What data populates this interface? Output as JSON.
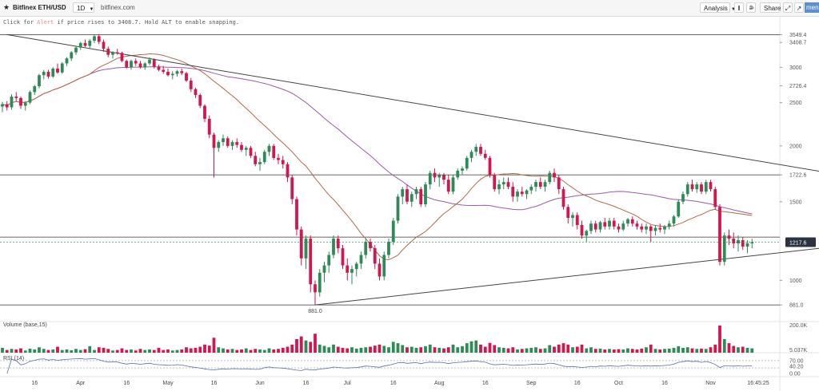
{
  "toolbar": {
    "symbol": "Bitfinex ETH/USD",
    "interval": "1D",
    "source": "bitfinex.com",
    "analysis_label": "Analysis",
    "share_label": "Share",
    "more_label": "menu"
  },
  "hint": {
    "prefix": "Click for ",
    "alert_word": "Alert",
    "suffix": " if price rises to 3408.7. Hold ALT to enable snapping."
  },
  "colors": {
    "up": "#2e8b57",
    "down": "#d0174f",
    "ma_fast": "#b0684a",
    "ma_slow": "#9b5aa6",
    "trendline": "#444444",
    "last_price_bg": "#2b3340"
  },
  "chart_data": [
    {
      "type": "candlestick",
      "price_axis_labels": [
        "3549.4",
        "3408.7",
        "3000",
        "2726.4",
        "2500",
        "2000",
        "1722.6",
        "1500",
        "1217.6",
        "1000",
        "881.0"
      ],
      "x_tick_labels": [
        "16",
        "Apr",
        "16",
        "May",
        "16",
        "Jun",
        "16",
        "Jul",
        "16",
        "Aug",
        "16",
        "Sep",
        "16",
        "Oct",
        "16",
        "Nov",
        "16:45:25"
      ],
      "last_price": "1217.6",
      "low_annotation": "881.0",
      "horizontal_levels": [
        3549.4,
        1722.6,
        1250,
        881
      ],
      "trendlines": [
        {
          "from": [
            1,
            3550
          ],
          "to": [
            217,
            1500
          ]
        },
        {
          "from": [
            68,
            881
          ],
          "to": [
            217,
            1310
          ]
        }
      ],
      "ohlc": [
        [
          2450,
          2510,
          2380,
          2480
        ],
        [
          2480,
          2520,
          2400,
          2440
        ],
        [
          2440,
          2610,
          2410,
          2580
        ],
        [
          2580,
          2640,
          2520,
          2560
        ],
        [
          2560,
          2580,
          2420,
          2460
        ],
        [
          2460,
          2520,
          2400,
          2500
        ],
        [
          2500,
          2660,
          2480,
          2640
        ],
        [
          2640,
          2740,
          2600,
          2720
        ],
        [
          2720,
          2900,
          2690,
          2880
        ],
        [
          2880,
          2960,
          2820,
          2930
        ],
        [
          2930,
          2960,
          2830,
          2860
        ],
        [
          2860,
          3000,
          2840,
          2980
        ],
        [
          2980,
          3060,
          2900,
          2920
        ],
        [
          2920,
          3080,
          2900,
          3060
        ],
        [
          3060,
          3160,
          3020,
          3140
        ],
        [
          3140,
          3260,
          3100,
          3240
        ],
        [
          3240,
          3340,
          3200,
          3320
        ],
        [
          3320,
          3420,
          3280,
          3400
        ],
        [
          3400,
          3460,
          3330,
          3350
        ],
        [
          3350,
          3470,
          3300,
          3440
        ],
        [
          3440,
          3550,
          3400,
          3520
        ],
        [
          3520,
          3560,
          3380,
          3420
        ],
        [
          3420,
          3460,
          3250,
          3300
        ],
        [
          3300,
          3340,
          3160,
          3200
        ],
        [
          3200,
          3260,
          3140,
          3240
        ],
        [
          3240,
          3300,
          3200,
          3230
        ],
        [
          3230,
          3250,
          3080,
          3100
        ],
        [
          3100,
          3120,
          2980,
          3000
        ],
        [
          3000,
          3120,
          2960,
          3100
        ],
        [
          3100,
          3140,
          3020,
          3060
        ],
        [
          3060,
          3100,
          2980,
          3000
        ],
        [
          3000,
          3080,
          2960,
          3060
        ],
        [
          3060,
          3160,
          3030,
          3120
        ],
        [
          3120,
          3140,
          2980,
          3010
        ],
        [
          3010,
          3040,
          2940,
          2960
        ],
        [
          2960,
          3020,
          2900,
          2930
        ],
        [
          2930,
          2980,
          2860,
          2880
        ],
        [
          2880,
          2940,
          2820,
          2900
        ],
        [
          2900,
          2960,
          2860,
          2940
        ],
        [
          2940,
          2980,
          2880,
          2910
        ],
        [
          2910,
          2930,
          2780,
          2800
        ],
        [
          2800,
          2840,
          2640,
          2680
        ],
        [
          2680,
          2700,
          2560,
          2600
        ],
        [
          2600,
          2620,
          2430,
          2460
        ],
        [
          2460,
          2480,
          2260,
          2300
        ],
        [
          2300,
          2340,
          2080,
          2120
        ],
        [
          2120,
          2140,
          1700,
          1980
        ],
        [
          1980,
          2060,
          1940,
          2040
        ],
        [
          2040,
          2120,
          2000,
          2080
        ],
        [
          2080,
          2100,
          1980,
          2000
        ],
        [
          2000,
          2060,
          1960,
          2040
        ],
        [
          2040,
          2080,
          1980,
          2010
        ],
        [
          2010,
          2040,
          1940,
          1960
        ],
        [
          1960,
          2000,
          1900,
          1980
        ],
        [
          1980,
          2000,
          1880,
          1900
        ],
        [
          1900,
          1940,
          1800,
          1820
        ],
        [
          1820,
          1880,
          1760,
          1840
        ],
        [
          1840,
          1960,
          1820,
          1940
        ],
        [
          1940,
          2020,
          1900,
          2000
        ],
        [
          2000,
          2020,
          1860,
          1880
        ],
        [
          1880,
          1920,
          1820,
          1860
        ],
        [
          1860,
          1900,
          1780,
          1820
        ],
        [
          1820,
          1840,
          1660,
          1700
        ],
        [
          1700,
          1720,
          1480,
          1520
        ],
        [
          1520,
          1540,
          1260,
          1300
        ],
        [
          1300,
          1320,
          1080,
          1120
        ],
        [
          1120,
          1260,
          1060,
          1240
        ],
        [
          1240,
          1260,
          940,
          980
        ],
        [
          980,
          1000,
          881,
          940
        ],
        [
          940,
          1060,
          920,
          1040
        ],
        [
          1040,
          1100,
          990,
          1080
        ],
        [
          1080,
          1160,
          1040,
          1140
        ],
        [
          1140,
          1260,
          1120,
          1240
        ],
        [
          1240,
          1260,
          1150,
          1180
        ],
        [
          1180,
          1200,
          1060,
          1080
        ],
        [
          1080,
          1120,
          1000,
          1040
        ],
        [
          1040,
          1080,
          980,
          1060
        ],
        [
          1060,
          1100,
          1020,
          1090
        ],
        [
          1090,
          1160,
          1060,
          1140
        ],
        [
          1140,
          1240,
          1120,
          1220
        ],
        [
          1220,
          1240,
          1160,
          1180
        ],
        [
          1180,
          1200,
          1060,
          1090
        ],
        [
          1090,
          1120,
          1000,
          1020
        ],
        [
          1020,
          1160,
          1000,
          1140
        ],
        [
          1140,
          1240,
          1120,
          1220
        ],
        [
          1220,
          1380,
          1200,
          1360
        ],
        [
          1360,
          1560,
          1340,
          1540
        ],
        [
          1540,
          1620,
          1480,
          1600
        ],
        [
          1600,
          1640,
          1480,
          1500
        ],
        [
          1500,
          1580,
          1460,
          1560
        ],
        [
          1560,
          1620,
          1520,
          1600
        ],
        [
          1600,
          1620,
          1460,
          1480
        ],
        [
          1480,
          1660,
          1460,
          1640
        ],
        [
          1640,
          1760,
          1600,
          1740
        ],
        [
          1740,
          1780,
          1660,
          1700
        ],
        [
          1700,
          1740,
          1620,
          1720
        ],
        [
          1720,
          1740,
          1640,
          1680
        ],
        [
          1680,
          1720,
          1560,
          1580
        ],
        [
          1580,
          1720,
          1560,
          1700
        ],
        [
          1700,
          1780,
          1680,
          1760
        ],
        [
          1760,
          1800,
          1720,
          1780
        ],
        [
          1780,
          1900,
          1760,
          1880
        ],
        [
          1880,
          1960,
          1840,
          1940
        ],
        [
          1940,
          2020,
          1900,
          1990
        ],
        [
          1990,
          2020,
          1900,
          1920
        ],
        [
          1920,
          1960,
          1860,
          1880
        ],
        [
          1880,
          1900,
          1700,
          1720
        ],
        [
          1720,
          1740,
          1580,
          1600
        ],
        [
          1600,
          1680,
          1560,
          1640
        ],
        [
          1640,
          1700,
          1600,
          1660
        ],
        [
          1660,
          1700,
          1600,
          1620
        ],
        [
          1620,
          1660,
          1500,
          1540
        ],
        [
          1540,
          1600,
          1500,
          1580
        ],
        [
          1580,
          1620,
          1540,
          1560
        ],
        [
          1560,
          1600,
          1520,
          1590
        ],
        [
          1590,
          1640,
          1560,
          1620
        ],
        [
          1620,
          1680,
          1580,
          1660
        ],
        [
          1660,
          1700,
          1600,
          1620
        ],
        [
          1620,
          1680,
          1580,
          1660
        ],
        [
          1660,
          1760,
          1640,
          1740
        ],
        [
          1740,
          1780,
          1660,
          1700
        ],
        [
          1700,
          1720,
          1560,
          1600
        ],
        [
          1600,
          1620,
          1440,
          1460
        ],
        [
          1460,
          1480,
          1340,
          1380
        ],
        [
          1380,
          1420,
          1320,
          1400
        ],
        [
          1400,
          1420,
          1300,
          1330
        ],
        [
          1330,
          1360,
          1240,
          1260
        ],
        [
          1260,
          1300,
          1220,
          1290
        ],
        [
          1290,
          1360,
          1270,
          1340
        ],
        [
          1340,
          1360,
          1280,
          1300
        ],
        [
          1300,
          1360,
          1280,
          1350
        ],
        [
          1350,
          1380,
          1300,
          1320
        ],
        [
          1320,
          1380,
          1300,
          1360
        ],
        [
          1360,
          1380,
          1300,
          1320
        ],
        [
          1320,
          1340,
          1280,
          1300
        ],
        [
          1300,
          1360,
          1290,
          1340
        ],
        [
          1340,
          1380,
          1320,
          1370
        ],
        [
          1370,
          1390,
          1320,
          1340
        ],
        [
          1340,
          1360,
          1300,
          1320
        ],
        [
          1320,
          1340,
          1280,
          1300
        ],
        [
          1300,
          1340,
          1270,
          1320
        ],
        [
          1320,
          1330,
          1220,
          1290
        ],
        [
          1290,
          1330,
          1260,
          1310
        ],
        [
          1310,
          1340,
          1280,
          1300
        ],
        [
          1300,
          1330,
          1270,
          1320
        ],
        [
          1320,
          1360,
          1300,
          1340
        ],
        [
          1340,
          1400,
          1320,
          1390
        ],
        [
          1390,
          1520,
          1380,
          1500
        ],
        [
          1500,
          1580,
          1480,
          1560
        ],
        [
          1560,
          1660,
          1540,
          1640
        ],
        [
          1640,
          1680,
          1580,
          1600
        ],
        [
          1600,
          1660,
          1570,
          1640
        ],
        [
          1640,
          1660,
          1560,
          1580
        ],
        [
          1580,
          1680,
          1560,
          1660
        ],
        [
          1660,
          1680,
          1580,
          1600
        ],
        [
          1600,
          1620,
          1440,
          1460
        ],
        [
          1460,
          1480,
          1080,
          1100
        ],
        [
          1100,
          1280,
          1080,
          1260
        ],
        [
          1260,
          1300,
          1200,
          1240
        ],
        [
          1240,
          1280,
          1180,
          1210
        ],
        [
          1210,
          1260,
          1160,
          1230
        ],
        [
          1230,
          1250,
          1170,
          1190
        ],
        [
          1190,
          1230,
          1150,
          1210
        ],
        [
          1210,
          1240,
          1180,
          1217.6
        ]
      ],
      "volume": [
        0.18,
        0.1,
        0.14,
        0.12,
        0.16,
        0.08,
        0.15,
        0.12,
        0.2,
        0.14,
        0.1,
        0.12,
        0.22,
        0.1,
        0.12,
        0.09,
        0.14,
        0.1,
        0.13,
        0.24,
        0.1,
        0.2,
        0.18,
        0.14,
        0.08,
        0.1,
        0.16,
        0.1,
        0.12,
        0.08,
        0.14,
        0.1,
        0.12,
        0.1,
        0.18,
        0.1,
        0.12,
        0.08,
        0.1,
        0.12,
        0.2,
        0.16,
        0.18,
        0.22,
        0.3,
        0.26,
        0.55,
        0.2,
        0.16,
        0.12,
        0.14,
        0.1,
        0.12,
        0.16,
        0.1,
        0.14,
        0.12,
        0.1,
        0.16,
        0.12,
        0.14,
        0.18,
        0.22,
        0.3,
        0.5,
        0.6,
        0.45,
        0.4,
        0.7,
        0.3,
        0.25,
        0.2,
        0.3,
        0.22,
        0.18,
        0.16,
        0.2,
        0.15,
        0.18,
        0.2,
        0.22,
        0.26,
        0.3,
        0.25,
        0.2,
        0.4,
        0.35,
        0.28,
        0.2,
        0.22,
        0.18,
        0.2,
        0.24,
        0.3,
        0.2,
        0.18,
        0.16,
        0.2,
        0.3,
        0.2,
        0.24,
        0.35,
        0.42,
        0.45,
        0.3,
        0.22,
        0.36,
        0.28,
        0.2,
        0.18,
        0.16,
        0.2,
        0.12,
        0.14,
        0.16,
        0.18,
        0.2,
        0.14,
        0.16,
        0.28,
        0.22,
        0.3,
        0.35,
        0.3,
        0.2,
        0.22,
        0.3,
        0.16,
        0.2,
        0.14,
        0.15,
        0.12,
        0.14,
        0.12,
        0.13,
        0.12,
        0.16,
        0.14,
        0.12,
        0.15,
        0.2,
        0.3,
        0.14,
        0.12,
        0.14,
        0.15,
        0.18,
        0.24,
        0.18,
        0.2,
        0.16,
        0.14,
        0.15,
        0.14,
        0.2,
        0.3,
        1.0,
        0.5,
        0.35,
        0.25,
        0.2,
        0.22,
        0.18,
        0.16
      ],
      "volume_panel": {
        "label": "Volume (base,15)",
        "axis_labels": [
          "200.0K",
          "5.037K"
        ]
      },
      "rsi_panel": {
        "label": "RSI (14)",
        "axis_labels": [
          "70.00",
          "40.20",
          "0.00"
        ],
        "levels": [
          70,
          30
        ]
      }
    }
  ]
}
